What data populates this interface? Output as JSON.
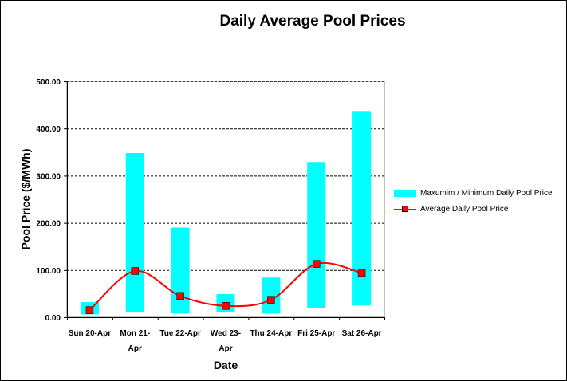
{
  "chart_data": {
    "type": "bar",
    "title": "Daily Average Pool Prices",
    "xlabel": "Date",
    "ylabel": "Pool Price ($/MWh)",
    "ylim": [
      0,
      500
    ],
    "yticks": [
      "0.00",
      "100.00",
      "200.00",
      "300.00",
      "400.00",
      "500.00"
    ],
    "grid": "horizontal dashed",
    "legend_position": "right",
    "categories": [
      [
        "Sun 20-Apr"
      ],
      [
        "Mon 21-",
        "Apr"
      ],
      [
        "Tue 22-Apr"
      ],
      [
        "Wed 23-",
        "Apr"
      ],
      [
        "Thu 24-Apr"
      ],
      [
        "Fri 25-Apr"
      ],
      [
        "Sat 26-Apr"
      ]
    ],
    "series": [
      {
        "name": "Maxumim / Minimum  Daily Pool Price",
        "kind": "floating-bar",
        "color": "#00ffff",
        "min": [
          6,
          10,
          8,
          10,
          8,
          20,
          25
        ],
        "max": [
          32,
          348,
          190,
          49,
          84,
          329,
          437
        ]
      },
      {
        "name": "Average Daily Pool Price",
        "kind": "line",
        "color": "#ff0000",
        "values": [
          15,
          98,
          45,
          24,
          37,
          113,
          94
        ]
      }
    ]
  }
}
